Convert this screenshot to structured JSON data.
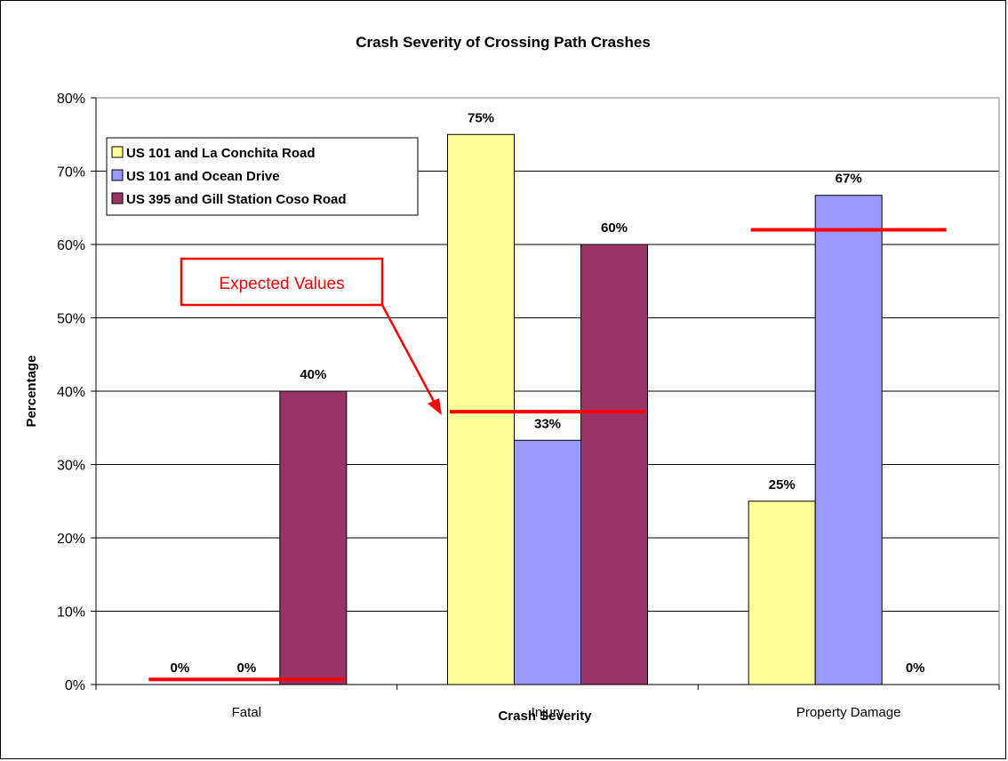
{
  "chart_data": {
    "type": "bar",
    "title": "Crash Severity of Crossing Path Crashes",
    "xlabel": "Crash Severity",
    "ylabel": "Percentage",
    "ylim": [
      0,
      80
    ],
    "y_ticks": [
      "0%",
      "10%",
      "20%",
      "30%",
      "40%",
      "50%",
      "60%",
      "70%",
      "80%"
    ],
    "categories": [
      "Fatal",
      "Injury",
      "Property Damage"
    ],
    "series": [
      {
        "name": "US 101 and La Conchita Road",
        "values": [
          0,
          75,
          25
        ],
        "labels": [
          "0%",
          "75%",
          "25%"
        ],
        "color": "#ffff99"
      },
      {
        "name": "US 101 and Ocean Drive",
        "values": [
          0,
          33.3,
          66.7
        ],
        "labels": [
          "0%",
          "33%",
          "67%"
        ],
        "color": "#9999ff"
      },
      {
        "name": "US 395 and Gill Station Coso Road",
        "values": [
          40,
          60,
          0
        ],
        "labels": [
          "40%",
          "60%",
          "0%"
        ],
        "color": "#993366"
      }
    ],
    "expected_values": [
      0.7,
      37.2,
      62
    ],
    "expected_color": "#ff0000",
    "annotation": "Expected Values",
    "grid": true,
    "legend": "top-left"
  }
}
